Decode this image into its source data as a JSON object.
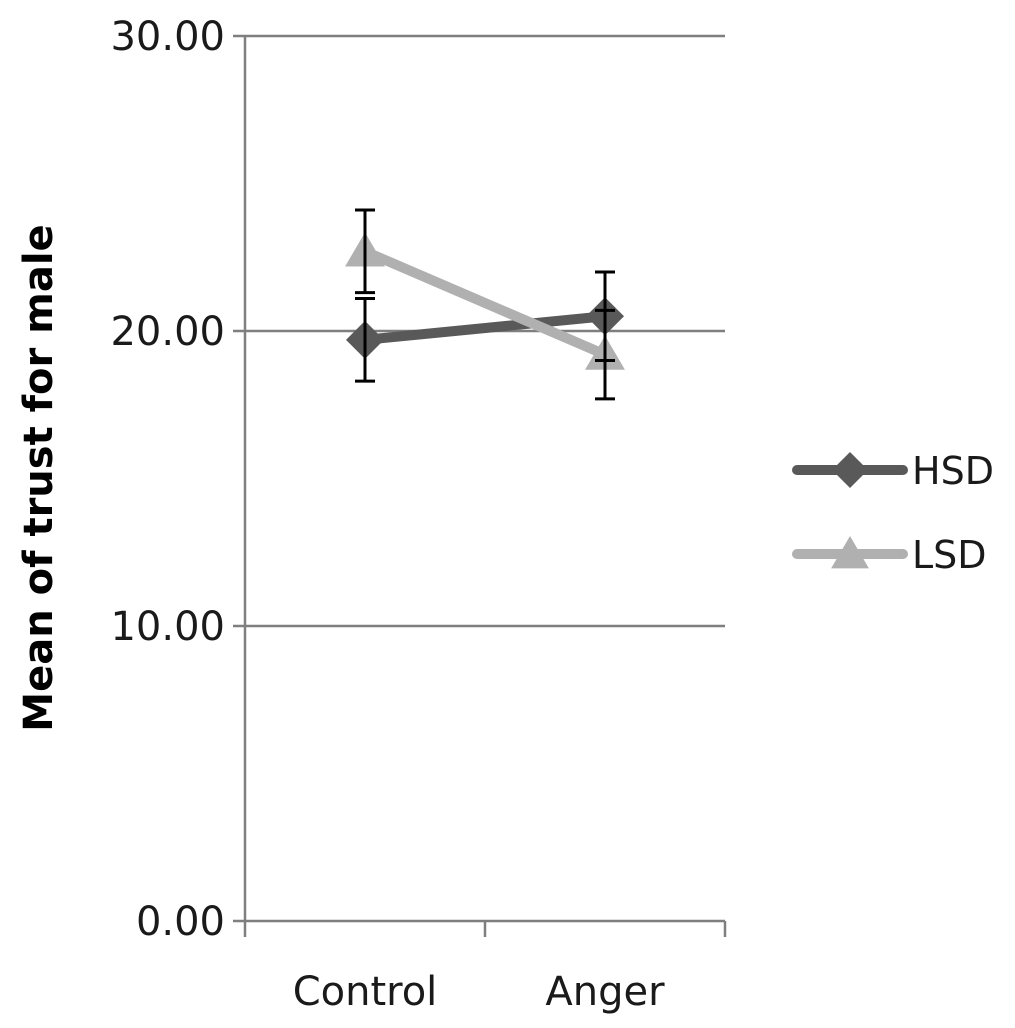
{
  "chart_data": {
    "type": "line",
    "categories": [
      "Control",
      "Anger"
    ],
    "ylabel": "Mean of trust for male",
    "ylim": [
      0,
      30
    ],
    "yticks": [
      "0.00",
      "10.00",
      "20.00",
      "30.00"
    ],
    "grid": true,
    "legend_position": "right",
    "series": [
      {
        "name": "HSD",
        "values": [
          19.7,
          20.5
        ],
        "error": [
          1.4,
          1.5
        ],
        "color": "#595959",
        "marker": "diamond"
      },
      {
        "name": "LSD",
        "values": [
          22.7,
          19.2
        ],
        "error": [
          1.4,
          1.5
        ],
        "color": "#b0b0b0",
        "marker": "triangle"
      }
    ]
  }
}
